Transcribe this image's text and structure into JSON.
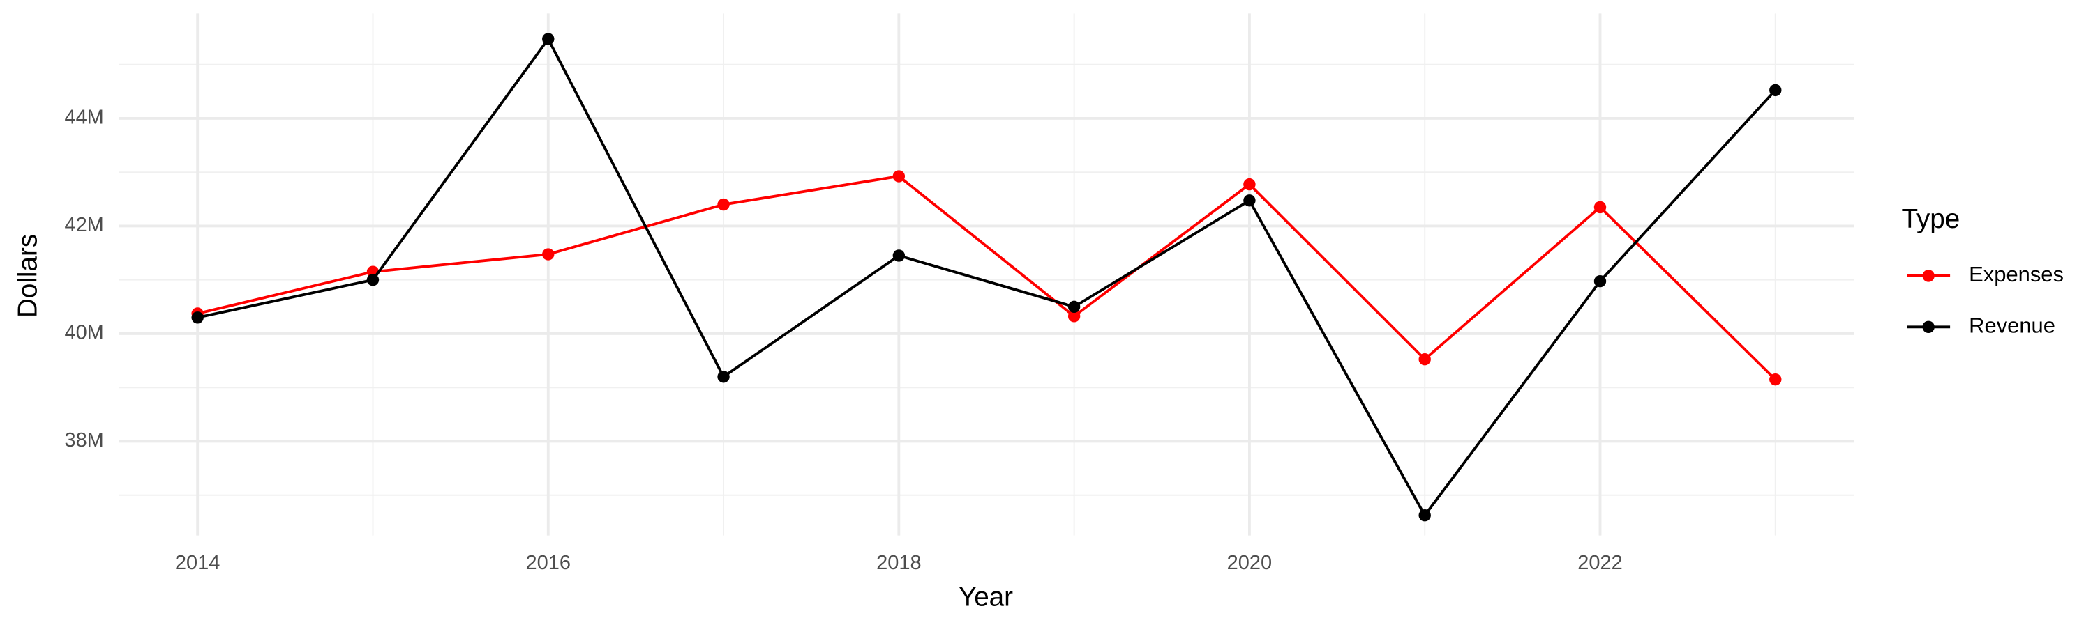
{
  "chart_data": {
    "type": "line",
    "x_label": "Year",
    "y_label": "Dollars",
    "legend_title": "Type",
    "legend": "right",
    "grid": true,
    "x": [
      2014,
      2015,
      2016,
      2017,
      2018,
      2019,
      2020,
      2021,
      2022,
      2023
    ],
    "series": [
      {
        "name": "Expenses",
        "color": "#ff0000",
        "values": [
          40375000,
          41150000,
          41475000,
          42400000,
          42925000,
          40325000,
          42775000,
          39525000,
          42350000,
          39150000
        ]
      },
      {
        "name": "Revenue",
        "color": "#000000",
        "values": [
          40300000,
          41000000,
          45475000,
          39200000,
          41450000,
          40500000,
          42475000,
          36625000,
          40975000,
          44525000
        ]
      }
    ],
    "xlim": [
      2013.55,
      2023.45
    ],
    "xticks": [
      2014,
      2016,
      2018,
      2020,
      2022
    ],
    "ylim": [
      36250000,
      45950000
    ],
    "yticks": [
      {
        "value": 38000000,
        "label": "38M"
      },
      {
        "value": 40000000,
        "label": "40M"
      },
      {
        "value": 42000000,
        "label": "42M"
      },
      {
        "value": 44000000,
        "label": "44M"
      }
    ]
  }
}
